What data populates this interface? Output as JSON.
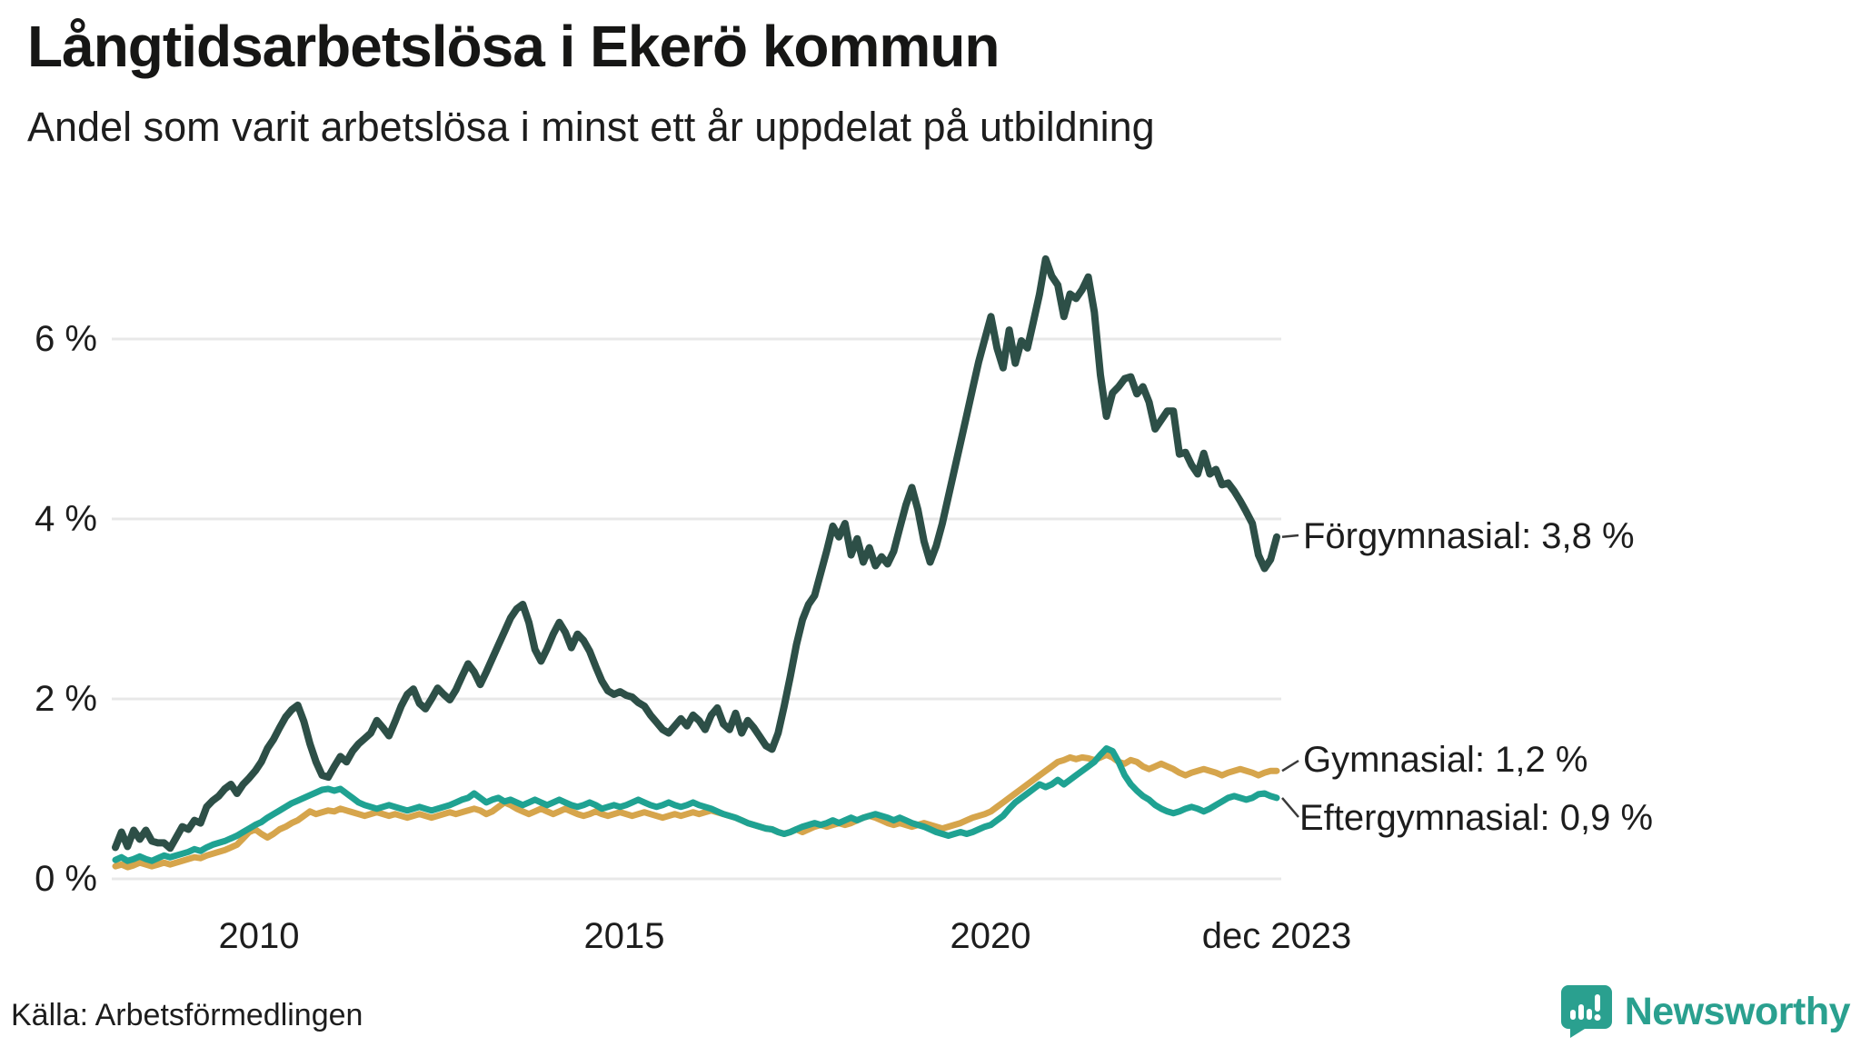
{
  "title": "Långtidsarbetslösa i Ekerö kommun",
  "subtitle": "Andel som varit arbetslösa i minst ett år uppdelat på utbildning",
  "source": "Källa: Arbetsförmedlingen",
  "branding": {
    "name": "Newsworthy",
    "icon": "speech-bubble-bar-chart-icon",
    "color": "#2aa08f"
  },
  "chart_data": {
    "type": "line",
    "x_unit": "month",
    "x_range": [
      "2008-01",
      "2023-12"
    ],
    "xticks": [
      {
        "label": "2010",
        "year": 2010
      },
      {
        "label": "2015",
        "year": 2015
      },
      {
        "label": "2020",
        "year": 2020
      },
      {
        "label": "dec 2023",
        "year": 2023.92
      }
    ],
    "yticks": [
      {
        "label": "0 %",
        "value": 0
      },
      {
        "label": "2 %",
        "value": 2
      },
      {
        "label": "4 %",
        "value": 4
      },
      {
        "label": "6 %",
        "value": 6
      }
    ],
    "ylim": [
      0,
      7.1
    ],
    "grid": "horizontal",
    "legend_position": "end-of-line-labels",
    "series": [
      {
        "name": "Förgymnasial",
        "color": "#2d4f47",
        "end_label": "Förgymnasial: 3,8 %",
        "end_value": 3.8,
        "values": [
          0.35,
          0.52,
          0.36,
          0.54,
          0.44,
          0.54,
          0.42,
          0.4,
          0.4,
          0.34,
          0.46,
          0.58,
          0.55,
          0.65,
          0.62,
          0.8,
          0.87,
          0.92,
          1.0,
          1.05,
          0.95,
          1.05,
          1.12,
          1.2,
          1.3,
          1.45,
          1.55,
          1.68,
          1.8,
          1.88,
          1.93,
          1.75,
          1.5,
          1.3,
          1.15,
          1.13,
          1.25,
          1.36,
          1.3,
          1.42,
          1.5,
          1.56,
          1.62,
          1.76,
          1.68,
          1.59,
          1.75,
          1.92,
          2.05,
          2.11,
          1.95,
          1.89,
          2.0,
          2.12,
          2.05,
          1.99,
          2.1,
          2.25,
          2.39,
          2.3,
          2.16,
          2.3,
          2.45,
          2.6,
          2.75,
          2.9,
          3.0,
          3.05,
          2.85,
          2.55,
          2.42,
          2.56,
          2.72,
          2.85,
          2.74,
          2.57,
          2.72,
          2.65,
          2.53,
          2.36,
          2.2,
          2.09,
          2.05,
          2.08,
          2.04,
          2.02,
          1.96,
          1.92,
          1.82,
          1.74,
          1.66,
          1.62,
          1.7,
          1.78,
          1.7,
          1.82,
          1.76,
          1.66,
          1.82,
          1.9,
          1.72,
          1.66,
          1.84,
          1.62,
          1.76,
          1.68,
          1.58,
          1.48,
          1.44,
          1.62,
          1.92,
          2.25,
          2.6,
          2.88,
          3.05,
          3.15,
          3.4,
          3.65,
          3.92,
          3.8,
          3.95,
          3.6,
          3.78,
          3.52,
          3.68,
          3.48,
          3.58,
          3.5,
          3.64,
          3.9,
          4.15,
          4.35,
          4.1,
          3.75,
          3.52,
          3.7,
          3.95,
          4.25,
          4.55,
          4.85,
          5.15,
          5.45,
          5.75,
          6.0,
          6.25,
          5.9,
          5.68,
          6.1,
          5.73,
          5.98,
          5.9,
          6.2,
          6.5,
          6.89,
          6.7,
          6.6,
          6.25,
          6.5,
          6.45,
          6.55,
          6.69,
          6.3,
          5.6,
          5.14,
          5.4,
          5.47,
          5.56,
          5.58,
          5.39,
          5.47,
          5.3,
          5.0,
          5.1,
          5.2,
          5.2,
          4.72,
          4.74,
          4.6,
          4.5,
          4.73,
          4.5,
          4.55,
          4.38,
          4.4,
          4.31,
          4.2,
          4.08,
          3.95,
          3.6,
          3.45,
          3.55,
          3.8
        ]
      },
      {
        "name": "Gymnasial",
        "color": "#d6a54c",
        "end_label": "Gymnasial: 1,2 %",
        "end_value": 1.2,
        "values": [
          0.14,
          0.16,
          0.13,
          0.15,
          0.18,
          0.16,
          0.14,
          0.16,
          0.18,
          0.16,
          0.18,
          0.2,
          0.22,
          0.24,
          0.23,
          0.26,
          0.28,
          0.3,
          0.32,
          0.35,
          0.38,
          0.45,
          0.52,
          0.55,
          0.5,
          0.46,
          0.5,
          0.55,
          0.58,
          0.62,
          0.65,
          0.7,
          0.75,
          0.72,
          0.74,
          0.76,
          0.75,
          0.78,
          0.76,
          0.74,
          0.72,
          0.7,
          0.72,
          0.74,
          0.72,
          0.7,
          0.72,
          0.7,
          0.68,
          0.7,
          0.72,
          0.7,
          0.68,
          0.7,
          0.72,
          0.74,
          0.72,
          0.74,
          0.76,
          0.78,
          0.76,
          0.72,
          0.75,
          0.8,
          0.85,
          0.82,
          0.78,
          0.75,
          0.72,
          0.75,
          0.78,
          0.75,
          0.72,
          0.75,
          0.78,
          0.75,
          0.72,
          0.7,
          0.72,
          0.75,
          0.72,
          0.7,
          0.72,
          0.74,
          0.72,
          0.7,
          0.72,
          0.74,
          0.72,
          0.7,
          0.68,
          0.7,
          0.72,
          0.7,
          0.72,
          0.74,
          0.72,
          0.74,
          0.76,
          0.74,
          0.72,
          0.7,
          0.68,
          0.65,
          0.62,
          0.6,
          0.58,
          0.56,
          0.55,
          0.52,
          0.5,
          0.52,
          0.55,
          0.52,
          0.55,
          0.58,
          0.6,
          0.58,
          0.6,
          0.62,
          0.6,
          0.62,
          0.65,
          0.68,
          0.7,
          0.68,
          0.65,
          0.62,
          0.6,
          0.62,
          0.6,
          0.58,
          0.6,
          0.62,
          0.6,
          0.58,
          0.56,
          0.58,
          0.6,
          0.62,
          0.65,
          0.68,
          0.7,
          0.72,
          0.75,
          0.8,
          0.85,
          0.9,
          0.95,
          1.0,
          1.05,
          1.1,
          1.15,
          1.2,
          1.25,
          1.3,
          1.32,
          1.35,
          1.33,
          1.35,
          1.34,
          1.32,
          1.35,
          1.38,
          1.35,
          1.3,
          1.28,
          1.32,
          1.3,
          1.25,
          1.22,
          1.25,
          1.28,
          1.25,
          1.22,
          1.18,
          1.15,
          1.18,
          1.2,
          1.22,
          1.2,
          1.18,
          1.15,
          1.18,
          1.2,
          1.22,
          1.2,
          1.18,
          1.15,
          1.18,
          1.2,
          1.2
        ]
      },
      {
        "name": "Eftergymnasial",
        "color": "#1fa292",
        "end_label": "Eftergymnasial: 0,9 %",
        "end_value": 0.9,
        "values": [
          0.21,
          0.24,
          0.2,
          0.22,
          0.25,
          0.22,
          0.2,
          0.23,
          0.26,
          0.24,
          0.26,
          0.28,
          0.3,
          0.33,
          0.31,
          0.35,
          0.38,
          0.4,
          0.42,
          0.45,
          0.48,
          0.52,
          0.56,
          0.6,
          0.63,
          0.68,
          0.72,
          0.76,
          0.8,
          0.84,
          0.87,
          0.9,
          0.93,
          0.96,
          0.99,
          1.0,
          0.98,
          1.0,
          0.95,
          0.9,
          0.85,
          0.82,
          0.8,
          0.78,
          0.8,
          0.82,
          0.8,
          0.78,
          0.76,
          0.78,
          0.8,
          0.78,
          0.76,
          0.78,
          0.8,
          0.82,
          0.85,
          0.88,
          0.9,
          0.95,
          0.9,
          0.85,
          0.88,
          0.9,
          0.86,
          0.88,
          0.85,
          0.82,
          0.85,
          0.88,
          0.85,
          0.82,
          0.85,
          0.88,
          0.85,
          0.82,
          0.8,
          0.82,
          0.85,
          0.82,
          0.78,
          0.8,
          0.82,
          0.8,
          0.82,
          0.85,
          0.88,
          0.85,
          0.82,
          0.8,
          0.82,
          0.85,
          0.82,
          0.8,
          0.82,
          0.85,
          0.82,
          0.8,
          0.78,
          0.75,
          0.72,
          0.7,
          0.68,
          0.65,
          0.62,
          0.6,
          0.58,
          0.56,
          0.55,
          0.52,
          0.5,
          0.52,
          0.55,
          0.58,
          0.6,
          0.62,
          0.6,
          0.62,
          0.65,
          0.62,
          0.65,
          0.68,
          0.65,
          0.68,
          0.7,
          0.72,
          0.7,
          0.68,
          0.65,
          0.68,
          0.65,
          0.62,
          0.6,
          0.58,
          0.55,
          0.52,
          0.5,
          0.48,
          0.5,
          0.52,
          0.5,
          0.52,
          0.55,
          0.58,
          0.6,
          0.65,
          0.7,
          0.78,
          0.85,
          0.9,
          0.95,
          1.0,
          1.05,
          1.02,
          1.05,
          1.1,
          1.05,
          1.1,
          1.15,
          1.2,
          1.25,
          1.3,
          1.38,
          1.45,
          1.42,
          1.3,
          1.15,
          1.05,
          0.98,
          0.92,
          0.88,
          0.82,
          0.78,
          0.75,
          0.73,
          0.75,
          0.78,
          0.8,
          0.78,
          0.75,
          0.78,
          0.82,
          0.86,
          0.9,
          0.92,
          0.9,
          0.88,
          0.9,
          0.94,
          0.95,
          0.92,
          0.9
        ]
      }
    ]
  }
}
